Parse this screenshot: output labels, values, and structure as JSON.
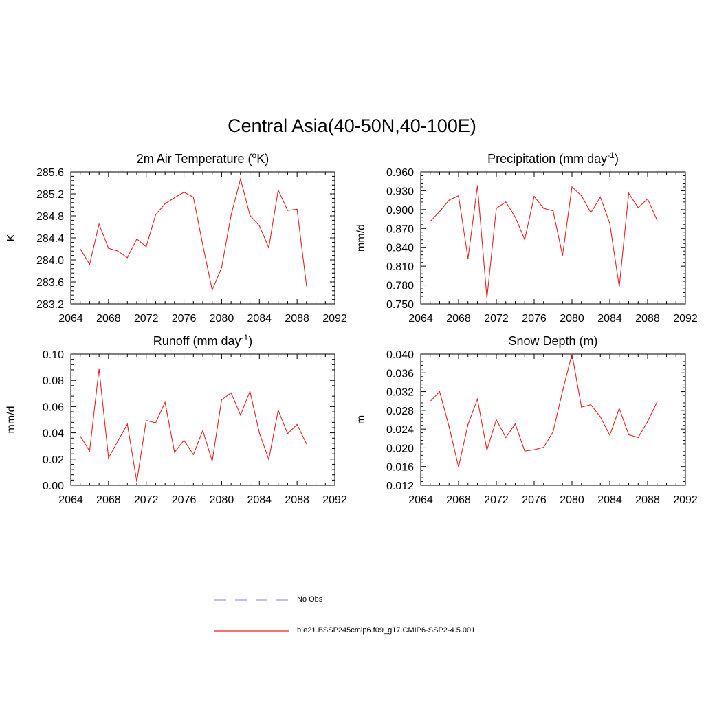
{
  "figure": {
    "title": "Central Asia(40-50N,40-100E)"
  },
  "legend": [
    {
      "label": "No Obs",
      "color": "#9a9ae8",
      "dash": true
    },
    {
      "label": "b.e21.BSSP245cmip6.f09_g17.CMIP6-SSP2-4.5.001",
      "color": "#e52222",
      "dash": false
    }
  ],
  "chart_data": [
    {
      "type": "line",
      "title_main": "2m Air Temperature (",
      "title_sup": "o",
      "title_end": "K)",
      "ylabel": "K",
      "xlim": [
        2064,
        2092
      ],
      "ylim": [
        283.2,
        285.6
      ],
      "xticks": [
        "2064",
        "2068",
        "2072",
        "2076",
        "2080",
        "2084",
        "2088",
        "2092"
      ],
      "yticks": [
        "283.2",
        "283.6",
        "284.0",
        "284.4",
        "284.8",
        "285.2",
        "285.6"
      ],
      "color": "#e52222",
      "x": [
        2065,
        2066,
        2067,
        2068,
        2069,
        2070,
        2071,
        2072,
        2073,
        2074,
        2075,
        2076,
        2077,
        2078,
        2079,
        2080,
        2081,
        2082,
        2083,
        2084,
        2085,
        2086,
        2087,
        2088,
        2089
      ],
      "values": [
        284.2,
        283.92,
        284.65,
        284.21,
        284.16,
        284.04,
        284.38,
        284.24,
        284.82,
        285.02,
        285.13,
        285.23,
        285.14,
        284.27,
        283.45,
        283.86,
        284.81,
        285.47,
        284.81,
        284.62,
        284.22,
        285.27,
        284.9,
        284.92,
        283.53
      ]
    },
    {
      "type": "line",
      "title_main": "Precipitation (mm day",
      "title_sup": "-1",
      "title_end": ")",
      "ylabel": "mm/d",
      "xlim": [
        2064,
        2092
      ],
      "ylim": [
        0.75,
        0.96
      ],
      "xticks": [
        "2064",
        "2068",
        "2072",
        "2076",
        "2080",
        "2084",
        "2088",
        "2092"
      ],
      "yticks": [
        "0.750",
        "0.780",
        "0.810",
        "0.840",
        "0.870",
        "0.900",
        "0.930",
        "0.960"
      ],
      "color": "#e52222",
      "x": [
        2065,
        2066,
        2067,
        2068,
        2069,
        2070,
        2071,
        2072,
        2073,
        2074,
        2075,
        2076,
        2077,
        2078,
        2079,
        2080,
        2081,
        2082,
        2083,
        2084,
        2085,
        2086,
        2087,
        2088,
        2089
      ],
      "values": [
        0.881,
        0.897,
        0.915,
        0.922,
        0.822,
        0.938,
        0.759,
        0.902,
        0.912,
        0.888,
        0.852,
        0.921,
        0.902,
        0.898,
        0.827,
        0.936,
        0.922,
        0.895,
        0.92,
        0.878,
        0.777,
        0.926,
        0.903,
        0.917,
        0.883
      ]
    },
    {
      "type": "line",
      "title_main": "Runoff (mm day",
      "title_sup": "-1",
      "title_end": ")",
      "ylabel": "mm/d",
      "xlim": [
        2064,
        2092
      ],
      "ylim": [
        0.0,
        0.1
      ],
      "xticks": [
        "2064",
        "2068",
        "2072",
        "2076",
        "2080",
        "2084",
        "2088",
        "2092"
      ],
      "yticks": [
        "0.00",
        "0.02",
        "0.04",
        "0.06",
        "0.08",
        "0.10"
      ],
      "color": "#e52222",
      "x": [
        2065,
        2066,
        2067,
        2068,
        2069,
        2070,
        2071,
        2072,
        2073,
        2074,
        2075,
        2076,
        2077,
        2078,
        2079,
        2080,
        2081,
        2082,
        2083,
        2084,
        2085,
        2086,
        2087,
        2088,
        2089
      ],
      "values": [
        0.0375,
        0.0262,
        0.0888,
        0.0209,
        0.0338,
        0.0466,
        0.0028,
        0.0495,
        0.0476,
        0.0632,
        0.0252,
        0.0343,
        0.0234,
        0.0418,
        0.0184,
        0.0652,
        0.0705,
        0.0535,
        0.0716,
        0.0399,
        0.0197,
        0.0573,
        0.0393,
        0.0464,
        0.0315
      ]
    },
    {
      "type": "line",
      "title_main": "Snow Depth (m)",
      "title_sup": "",
      "title_end": "",
      "ylabel": "m",
      "xlim": [
        2064,
        2092
      ],
      "ylim": [
        0.012,
        0.04
      ],
      "xticks": [
        "2064",
        "2068",
        "2072",
        "2076",
        "2080",
        "2084",
        "2088",
        "2092"
      ],
      "yticks": [
        "0.012",
        "0.016",
        "0.020",
        "0.024",
        "0.028",
        "0.032",
        "0.036",
        "0.040"
      ],
      "color": "#e52222",
      "x": [
        2065,
        2066,
        2067,
        2068,
        2069,
        2070,
        2071,
        2072,
        2073,
        2074,
        2075,
        2076,
        2077,
        2078,
        2079,
        2080,
        2081,
        2082,
        2083,
        2084,
        2085,
        2086,
        2087,
        2088,
        2089
      ],
      "values": [
        0.0299,
        0.032,
        0.0245,
        0.0159,
        0.025,
        0.0304,
        0.0195,
        0.026,
        0.0222,
        0.0251,
        0.0193,
        0.0196,
        0.0201,
        0.0234,
        0.0321,
        0.04,
        0.0287,
        0.0292,
        0.0266,
        0.0227,
        0.0284,
        0.0228,
        0.0222,
        0.0256,
        0.0298
      ]
    }
  ]
}
